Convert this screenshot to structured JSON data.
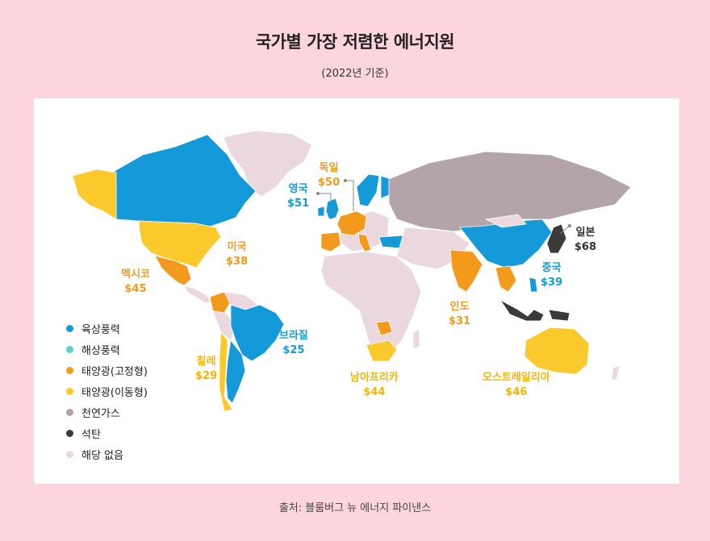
{
  "title": "국가별 가장 저렴한 에너지원",
  "subtitle": "(2022년 기준)",
  "source": "출처: 블룸버그 뉴 에너지 파이낸스",
  "colors": {
    "onshore_wind": "#149ad8",
    "offshore_wind": "#5fcfd6",
    "solar_fixed": "#f39a1d",
    "solar_tracking": "#fcc92c",
    "natural_gas": "#b2a4a9",
    "coal": "#3a3a3a",
    "none": "#ead8de"
  },
  "legend": [
    {
      "key": "onshore_wind",
      "label": "육상풍력",
      "color": "#149ad8"
    },
    {
      "key": "offshore_wind",
      "label": "해상풍력",
      "color": "#5fcfd6"
    },
    {
      "key": "solar_fixed",
      "label": "태양광(고정형)",
      "color": "#f39a1d"
    },
    {
      "key": "solar_tracking",
      "label": "태양광(이동형)",
      "color": "#fcc92c"
    },
    {
      "key": "natural_gas",
      "label": "천연가스",
      "color": "#b2a4a9"
    },
    {
      "key": "coal",
      "label": "석탄",
      "color": "#3a3a3a"
    },
    {
      "key": "none",
      "label": "해당 없음",
      "color": "#ead8de"
    }
  ],
  "countries": [
    {
      "id": "uk",
      "name": "영국",
      "value": "$51",
      "source": "onshore_wind"
    },
    {
      "id": "germany",
      "name": "독일",
      "value": "$50",
      "source": "solar_fixed"
    },
    {
      "id": "japan",
      "name": "일본",
      "value": "$68",
      "source": "coal"
    },
    {
      "id": "usa",
      "name": "미국",
      "value": "$38",
      "source": "solar_tracking"
    },
    {
      "id": "mexico",
      "name": "멕시코",
      "value": "$45",
      "source": "solar_fixed"
    },
    {
      "id": "china",
      "name": "중국",
      "value": "$39",
      "source": "onshore_wind"
    },
    {
      "id": "brazil",
      "name": "브라질",
      "value": "$25",
      "source": "onshore_wind"
    },
    {
      "id": "india",
      "name": "인도",
      "value": "$31",
      "source": "solar_fixed"
    },
    {
      "id": "chile",
      "name": "칠레",
      "value": "$29",
      "source": "solar_tracking"
    },
    {
      "id": "south_africa",
      "name": "남아프리카",
      "value": "$44",
      "source": "solar_tracking"
    },
    {
      "id": "australia",
      "name": "오스트레일리아",
      "value": "$46",
      "source": "solar_tracking"
    }
  ]
}
